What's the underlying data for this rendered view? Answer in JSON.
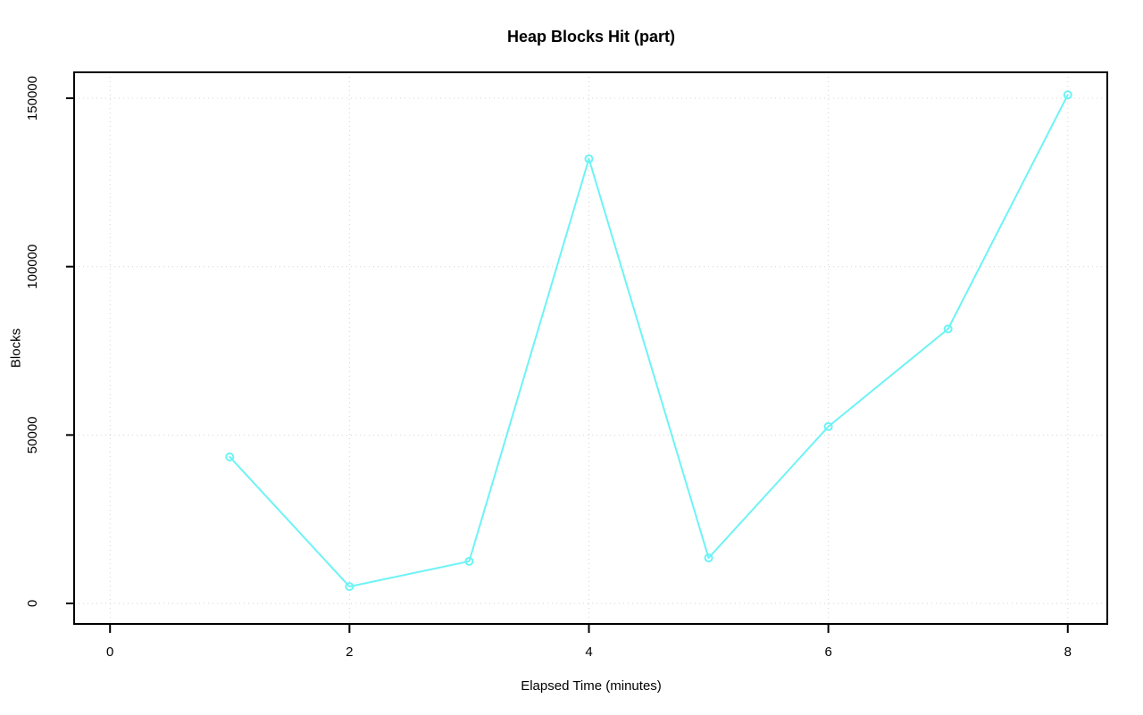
{
  "chart_data": {
    "type": "line",
    "title": "Heap Blocks Hit (part)",
    "xlabel": "Elapsed Time (minutes)",
    "ylabel": "Blocks",
    "x": [
      1,
      2,
      3,
      4,
      5,
      6,
      7,
      8
    ],
    "series": [
      {
        "name": "Heap Blocks Hit",
        "values": [
          43500,
          5000,
          12500,
          132000,
          13500,
          52500,
          81500,
          151000
        ]
      }
    ],
    "x_ticks": [
      0,
      2,
      4,
      6,
      8
    ],
    "x_tick_labels": [
      "0",
      "2",
      "4",
      "6",
      "8"
    ],
    "y_ticks": [
      0,
      50000,
      100000,
      150000
    ],
    "y_tick_labels": [
      "0",
      "50000",
      "100000",
      "150000"
    ],
    "xlim": [
      -0.3,
      8.33
    ],
    "ylim": [
      -6100,
      157700
    ],
    "grid": "dotted",
    "legend": "none",
    "marker": "open-circle",
    "colors": {
      "line": "#6EF3F5",
      "grid": "#D4D4D4",
      "axis": "#000000",
      "text": "#000000",
      "background": "#FFFFFF"
    }
  }
}
